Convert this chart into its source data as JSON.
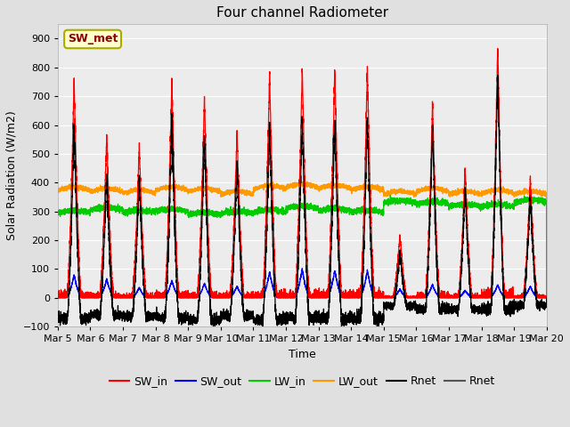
{
  "title": "Four channel Radiometer",
  "xlabel": "Time",
  "ylabel": "Solar Radiation (W/m2)",
  "ylim": [
    -100,
    950
  ],
  "yticks": [
    -100,
    0,
    100,
    200,
    300,
    400,
    500,
    600,
    700,
    800,
    900
  ],
  "start_day": 5,
  "n_days": 15,
  "colors": {
    "SW_in": "#ff0000",
    "SW_out": "#0000ff",
    "LW_in": "#00cc00",
    "LW_out": "#ff9900",
    "Rnet_black": "#000000",
    "Rnet_dark": "#555555"
  },
  "legend_labels": [
    "SW_in",
    "SW_out",
    "LW_in",
    "LW_out",
    "Rnet",
    "Rnet"
  ],
  "annotation_text": "SW_met",
  "annotation_color": "#8b0000",
  "annotation_bg": "#ffffcc",
  "annotation_border": "#aaaa00",
  "bg_color": "#e0e0e0",
  "plot_bg": "#ececec",
  "grid_color": "#ffffff",
  "title_fontsize": 11,
  "axis_fontsize": 9,
  "tick_fontsize": 8,
  "legend_fontsize": 9,
  "SW_in_peaks": [
    760,
    560,
    530,
    760,
    700,
    580,
    780,
    800,
    800,
    795,
    220,
    680,
    450,
    870,
    420
  ],
  "SW_out_peaks": [
    80,
    65,
    35,
    60,
    50,
    40,
    90,
    100,
    95,
    95,
    30,
    45,
    25,
    45,
    40
  ],
  "LW_in_base": [
    295,
    305,
    295,
    300,
    288,
    292,
    297,
    310,
    302,
    296,
    330,
    326,
    316,
    316,
    332
  ],
  "LW_out_base": [
    372,
    368,
    363,
    373,
    368,
    358,
    378,
    383,
    378,
    373,
    358,
    368,
    358,
    362,
    358
  ]
}
